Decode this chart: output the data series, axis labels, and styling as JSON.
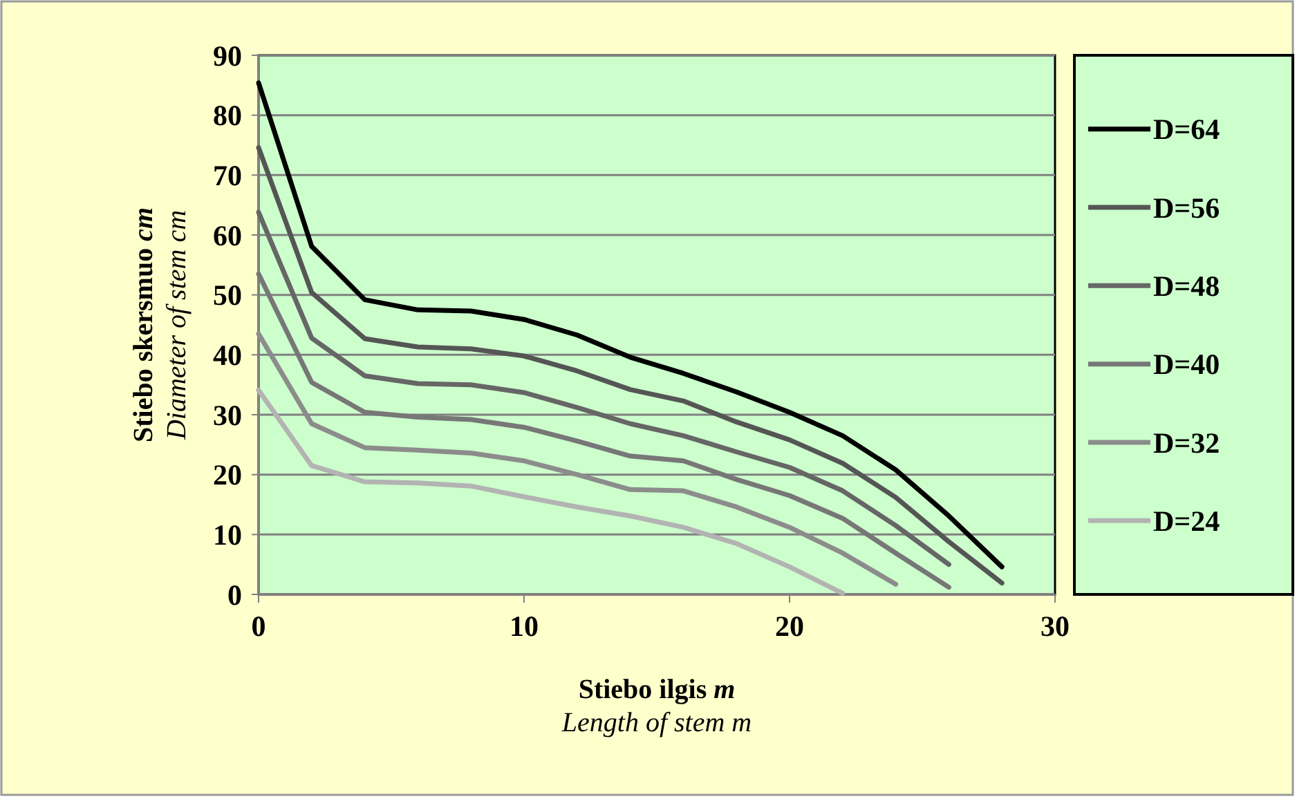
{
  "chart_data": {
    "type": "line",
    "xlabel": "Stiebo ilgis m\nLength of stem m",
    "ylabel": "Stiebo skersmuo cm\nDiameter of stem cm",
    "xlim": [
      0,
      30
    ],
    "xticks": [
      0,
      10,
      20,
      30
    ],
    "ylim": [
      0,
      90
    ],
    "yticks": [
      0,
      10,
      20,
      30,
      40,
      50,
      60,
      70,
      80,
      90
    ],
    "grid": "y",
    "legend": "right",
    "marker": "none",
    "line_style": "solid",
    "series": [
      {
        "name": "D=64",
        "color": "#000000",
        "x": [
          0,
          2,
          4,
          6,
          8,
          10,
          12,
          14,
          16,
          18,
          20,
          22,
          24,
          26,
          28
        ],
        "values": [
          85.4,
          58.1,
          49.2,
          47.5,
          47.3,
          45.9,
          43.3,
          39.6,
          36.9,
          33.8,
          30.4,
          26.5,
          20.8,
          13.1,
          4.6
        ]
      },
      {
        "name": "D=56",
        "color": "#555555",
        "x": [
          0,
          2,
          4,
          6,
          8,
          10,
          12,
          14,
          16,
          18,
          20,
          22,
          24,
          26,
          28
        ],
        "values": [
          74.6,
          50.4,
          42.7,
          41.3,
          41,
          39.8,
          37.3,
          34.2,
          32.3,
          28.8,
          25.8,
          21.9,
          16.2,
          8.8,
          1.9
        ]
      },
      {
        "name": "D=48",
        "color": "#666666",
        "x": [
          0,
          2,
          4,
          6,
          8,
          10,
          12,
          14,
          16,
          18,
          20,
          22,
          24,
          26
        ],
        "values": [
          63.8,
          42.8,
          36.5,
          35.2,
          35,
          33.7,
          31.2,
          28.5,
          26.5,
          23.8,
          21.2,
          17.3,
          11.5,
          5
        ]
      },
      {
        "name": "D=40",
        "color": "#777777",
        "x": [
          0,
          2,
          4,
          6,
          8,
          10,
          12,
          14,
          16,
          18,
          20,
          22,
          24,
          26
        ],
        "values": [
          53.5,
          35.4,
          30.4,
          29.6,
          29.2,
          27.9,
          25.6,
          23.1,
          22.3,
          19.2,
          16.5,
          12.7,
          6.9,
          1.2
        ]
      },
      {
        "name": "D=32",
        "color": "#8c8c8c",
        "x": [
          0,
          2,
          4,
          6,
          8,
          10,
          12,
          14,
          16,
          18,
          20,
          22,
          24
        ],
        "values": [
          43.5,
          28.5,
          24.5,
          24.1,
          23.6,
          22.3,
          20,
          17.5,
          17.3,
          14.6,
          11.2,
          6.9,
          1.7
        ]
      },
      {
        "name": "D=24",
        "color": "#b3b3b3",
        "x": [
          0,
          2,
          4,
          6,
          8,
          10,
          12,
          14,
          16,
          18,
          20,
          22
        ],
        "values": [
          34.1,
          21.5,
          18.8,
          18.6,
          18.1,
          16.3,
          14.6,
          13.1,
          11.2,
          8.5,
          4.6,
          0.2
        ]
      }
    ]
  }
}
